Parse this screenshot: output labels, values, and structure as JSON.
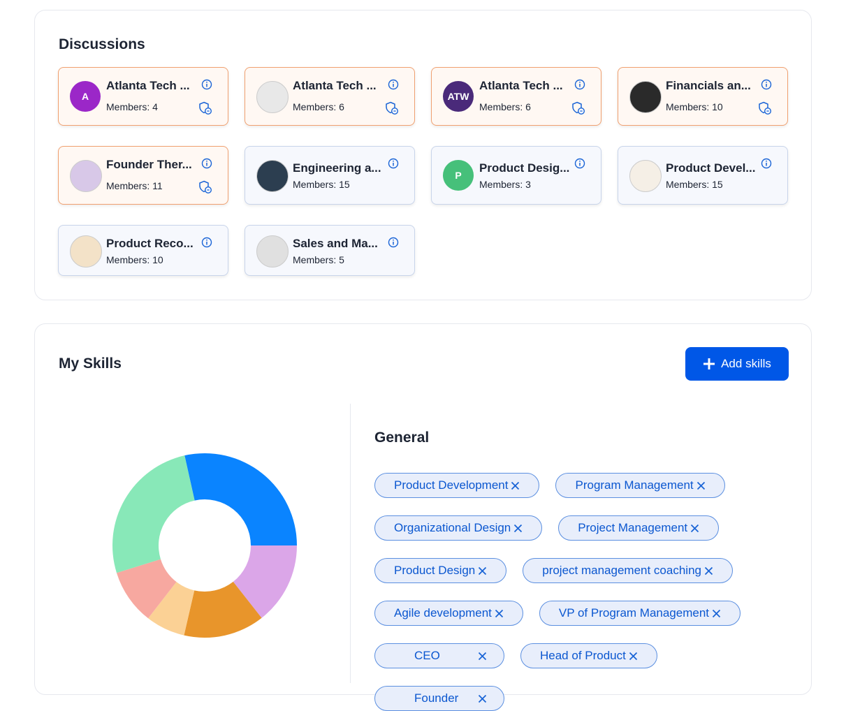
{
  "discussions": {
    "title": "Discussions",
    "groups": [
      {
        "name": "Atlanta Tech ...",
        "members": "Members: 4",
        "avatar_text": "A",
        "avatar_color": "#9b27c8",
        "moderated": true
      },
      {
        "name": "Atlanta Tech ...",
        "members": "Members: 6",
        "avatar_color": "#e8e8e8",
        "moderated": true
      },
      {
        "name": "Atlanta Tech ...",
        "members": "Members: 6",
        "avatar_text": "ATW",
        "avatar_color": "#4a2a7a",
        "moderated": true
      },
      {
        "name": "Financials an...",
        "members": "Members: 10",
        "avatar_color": "#2a2a2a",
        "moderated": true
      },
      {
        "name": "Founder Ther...",
        "members": "Members: 11",
        "avatar_color": "#d8c8e8",
        "moderated": true
      },
      {
        "name": "Engineering a...",
        "members": "Members: 15",
        "avatar_color": "#2c3e50",
        "moderated": false
      },
      {
        "name": "Product Desig...",
        "members": "Members: 3",
        "avatar_text": "P",
        "avatar_color": "#46c07a",
        "moderated": false
      },
      {
        "name": "Product Devel...",
        "members": "Members: 15",
        "avatar_color": "#f5efe6",
        "moderated": false
      },
      {
        "name": "Product Reco...",
        "members": "Members: 10",
        "avatar_color": "#f3e2c8",
        "moderated": false
      },
      {
        "name": "Sales and Ma...",
        "members": "Members: 5",
        "avatar_color": "#e0e0e0",
        "moderated": false
      }
    ]
  },
  "skills": {
    "title": "My Skills",
    "add_button": "Add skills",
    "chart": {
      "type": "pie",
      "values": [
        28.5,
        14.4,
        14.2,
        6.9,
        9.7,
        26.3
      ],
      "colors": [
        "#0a84ff",
        "#dba6e8",
        "#e8952b",
        "#fbd195",
        "#f7a8a0",
        "#88e8b8"
      ]
    },
    "category": "General",
    "tags": [
      "Product Development",
      "Program Management",
      "Organizational Design",
      "Project Management",
      "Product Design",
      "project management coaching",
      "Agile development",
      "VP of Program Management",
      "CEO",
      "Head of Product",
      "Founder"
    ]
  }
}
